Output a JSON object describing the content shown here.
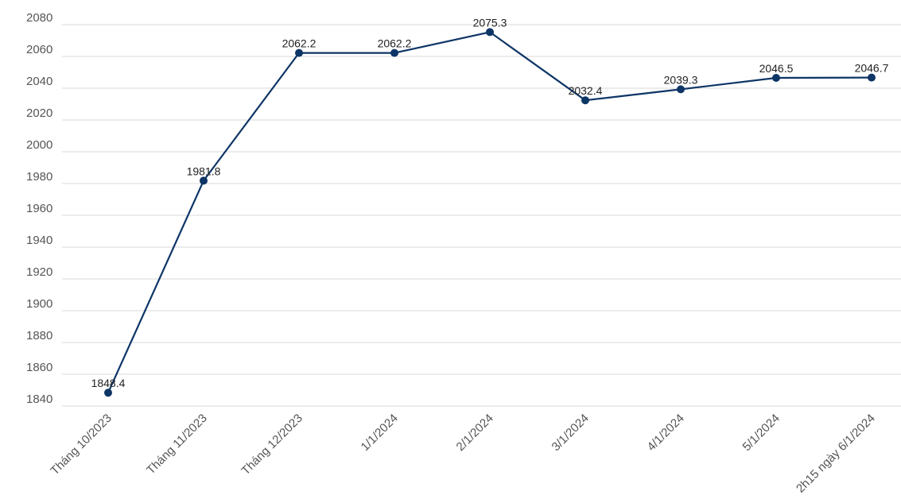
{
  "chart_data": {
    "type": "line",
    "categories": [
      "Tháng 10/2023",
      "Tháng 11/2023",
      "Tháng 12/2023",
      "1/1/2024",
      "2/1/2024",
      "3/1/2024",
      "4/1/2024",
      "5/1/2024",
      "2h15 ngày 6/1/2024"
    ],
    "series": [
      {
        "values": [
          1848.4,
          1981.8,
          2062.2,
          2062.2,
          2075.3,
          2032.4,
          2039.3,
          2046.5,
          2046.7
        ]
      }
    ],
    "data_labels": [
      "1848.4",
      "1981.8",
      "2062.2",
      "2062.2",
      "2075.3",
      "2032.4",
      "2039.3",
      "2046.5",
      "2046.7"
    ],
    "y_ticks": [
      1840,
      1860,
      1880,
      1900,
      1920,
      1940,
      1960,
      1980,
      2000,
      2020,
      2040,
      2060,
      2080
    ],
    "ylim": [
      1840,
      2080
    ],
    "title": "",
    "xlabel": "",
    "ylabel": "",
    "grid": true,
    "line_color": "#0d3566",
    "marker_color": "#0d3566"
  }
}
